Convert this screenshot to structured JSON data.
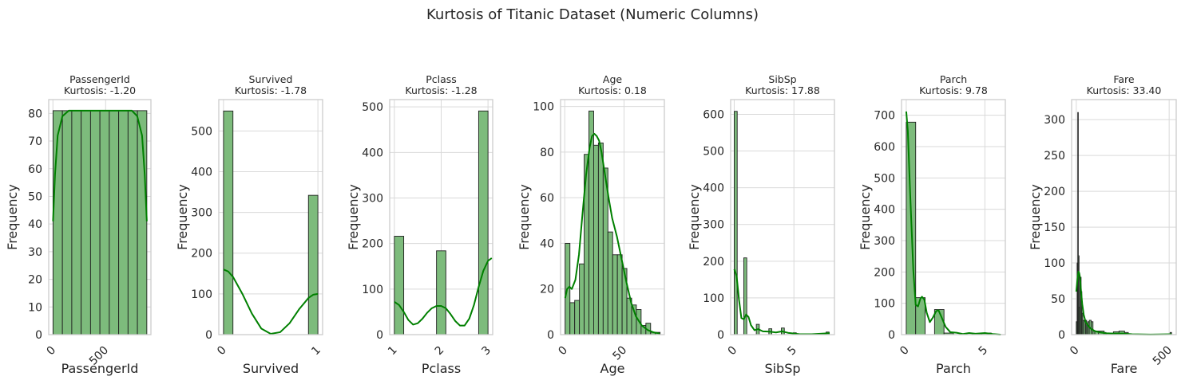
{
  "figure": {
    "title": "Kurtosis of Titanic Dataset (Numeric Columns)"
  },
  "colors": {
    "bar_fill": "#7dbb7c",
    "bar_stroke": "#1f1f1f",
    "kde_line": "#008000",
    "grid": "#d9d9d9",
    "spine": "#cccccc",
    "text": "#262626"
  },
  "chart_data": [
    {
      "type": "bar",
      "title": "PassengerId",
      "subtitle": "Kurtosis: -1.20",
      "xlabel": "PassengerId",
      "ylabel": "Frequency",
      "xlim": [
        -40,
        930
      ],
      "ylim": [
        0,
        85
      ],
      "xticks": [
        0,
        500
      ],
      "xtick_labels": [
        "0",
        "500"
      ],
      "yticks": [
        0,
        10,
        20,
        30,
        40,
        50,
        60,
        70,
        80
      ],
      "ytick_labels": [
        "0",
        "10",
        "20",
        "30",
        "40",
        "50",
        "60",
        "70",
        "80"
      ],
      "bars": [
        [
          1,
          90,
          81
        ],
        [
          90,
          179,
          81
        ],
        [
          179,
          268,
          81
        ],
        [
          268,
          357,
          81
        ],
        [
          357,
          446,
          81
        ],
        [
          446,
          535,
          81
        ],
        [
          535,
          624,
          81
        ],
        [
          624,
          713,
          81
        ],
        [
          713,
          802,
          81
        ],
        [
          802,
          891,
          81
        ]
      ],
      "kde": [
        [
          1,
          41
        ],
        [
          20,
          58
        ],
        [
          45,
          72
        ],
        [
          90,
          79
        ],
        [
          150,
          81
        ],
        [
          300,
          81
        ],
        [
          450,
          81
        ],
        [
          600,
          81
        ],
        [
          750,
          81
        ],
        [
          800,
          79
        ],
        [
          846,
          72
        ],
        [
          871,
          58
        ],
        [
          891,
          41
        ]
      ]
    },
    {
      "type": "bar",
      "title": "Survived",
      "subtitle": "Kurtosis: -1.78",
      "xlabel": "Survived",
      "ylabel": "Frequency",
      "xlim": [
        -0.05,
        1.05
      ],
      "ylim": [
        0,
        577
      ],
      "xticks": [
        0,
        1
      ],
      "xtick_labels": [
        "0",
        "1"
      ],
      "yticks": [
        0,
        100,
        200,
        300,
        400,
        500
      ],
      "ytick_labels": [
        "0",
        "100",
        "200",
        "300",
        "400",
        "500"
      ],
      "bars": [
        [
          0,
          0.1,
          549
        ],
        [
          0.9,
          1.0,
          342
        ]
      ],
      "kde": [
        [
          0,
          160
        ],
        [
          0.05,
          155
        ],
        [
          0.1,
          142
        ],
        [
          0.2,
          100
        ],
        [
          0.3,
          52
        ],
        [
          0.4,
          15
        ],
        [
          0.5,
          2
        ],
        [
          0.6,
          6
        ],
        [
          0.7,
          28
        ],
        [
          0.8,
          62
        ],
        [
          0.9,
          90
        ],
        [
          0.95,
          98
        ],
        [
          1.0,
          100
        ]
      ]
    },
    {
      "type": "bar",
      "title": "Pclass",
      "subtitle": "Kurtosis: -1.28",
      "xlabel": "Pclass",
      "ylabel": "Frequency",
      "xlim": [
        0.9,
        3.1
      ],
      "ylim": [
        0,
        516
      ],
      "xticks": [
        1,
        2,
        3
      ],
      "xtick_labels": [
        "1",
        "2",
        "3"
      ],
      "yticks": [
        0,
        100,
        200,
        300,
        400,
        500
      ],
      "ytick_labels": [
        "0",
        "100",
        "200",
        "300",
        "400",
        "500"
      ],
      "bars": [
        [
          1,
          1.2,
          216
        ],
        [
          1.9,
          2.1,
          184
        ],
        [
          2.8,
          3.0,
          491
        ]
      ],
      "kde": [
        [
          1,
          72
        ],
        [
          1.1,
          65
        ],
        [
          1.2,
          50
        ],
        [
          1.3,
          32
        ],
        [
          1.4,
          22
        ],
        [
          1.5,
          25
        ],
        [
          1.6,
          35
        ],
        [
          1.7,
          48
        ],
        [
          1.8,
          58
        ],
        [
          1.9,
          63
        ],
        [
          2.0,
          63
        ],
        [
          2.1,
          58
        ],
        [
          2.2,
          45
        ],
        [
          2.3,
          30
        ],
        [
          2.4,
          20
        ],
        [
          2.5,
          20
        ],
        [
          2.6,
          35
        ],
        [
          2.7,
          65
        ],
        [
          2.8,
          105
        ],
        [
          2.9,
          140
        ],
        [
          3.0,
          162
        ],
        [
          3.08,
          168
        ]
      ]
    },
    {
      "type": "bar",
      "title": "Age",
      "subtitle": "Kurtosis: 0.18",
      "xlabel": "Age",
      "ylabel": "Frequency",
      "xlim": [
        -3.5,
        84
      ],
      "ylim": [
        0,
        103
      ],
      "xticks": [
        0,
        50
      ],
      "xtick_labels": [
        "0",
        "50"
      ],
      "yticks": [
        0,
        20,
        40,
        60,
        80,
        100
      ],
      "ytick_labels": [
        "0",
        "20",
        "40",
        "60",
        "80",
        "100"
      ],
      "bars": [
        [
          0.4,
          4.4,
          40
        ],
        [
          4.4,
          8.4,
          14
        ],
        [
          8.4,
          12.4,
          15
        ],
        [
          12.4,
          16.4,
          31
        ],
        [
          16.4,
          20.4,
          79
        ],
        [
          20.4,
          24.4,
          98
        ],
        [
          24.4,
          28.4,
          83
        ],
        [
          28.4,
          32.4,
          84
        ],
        [
          32.4,
          36.4,
          73
        ],
        [
          36.4,
          40.4,
          45
        ],
        [
          40.4,
          44.4,
          35
        ],
        [
          44.4,
          48.4,
          35
        ],
        [
          48.4,
          52.4,
          29
        ],
        [
          52.4,
          56.4,
          16
        ],
        [
          56.4,
          60.4,
          13
        ],
        [
          60.4,
          64.4,
          11
        ],
        [
          64.4,
          68.4,
          4
        ],
        [
          68.4,
          72.4,
          5
        ],
        [
          72.4,
          76.4,
          1
        ],
        [
          76.4,
          80.4,
          1
        ]
      ],
      "kde": [
        [
          0.4,
          16
        ],
        [
          2,
          20
        ],
        [
          4,
          21
        ],
        [
          6,
          20
        ],
        [
          9,
          24
        ],
        [
          12,
          35
        ],
        [
          15,
          53
        ],
        [
          18,
          70
        ],
        [
          21,
          82
        ],
        [
          23,
          87
        ],
        [
          25,
          88
        ],
        [
          27,
          87
        ],
        [
          29,
          85
        ],
        [
          31,
          80
        ],
        [
          34,
          70
        ],
        [
          37,
          60
        ],
        [
          40,
          51
        ],
        [
          44,
          43
        ],
        [
          48,
          33
        ],
        [
          52,
          23
        ],
        [
          56,
          14
        ],
        [
          60,
          8
        ],
        [
          65,
          4
        ],
        [
          70,
          2
        ],
        [
          75,
          1
        ],
        [
          80,
          0.5
        ]
      ]
    },
    {
      "type": "bar",
      "title": "SibSp",
      "subtitle": "Kurtosis: 17.88",
      "xlabel": "SibSp",
      "ylabel": "Frequency",
      "xlim": [
        -0.3,
        8.4
      ],
      "ylim": [
        0,
        640
      ],
      "xticks": [
        0,
        5
      ],
      "xtick_labels": [
        "0",
        "5"
      ],
      "yticks": [
        0,
        100,
        200,
        300,
        400,
        500,
        600
      ],
      "ytick_labels": [
        "0",
        "100",
        "200",
        "300",
        "400",
        "500",
        "600"
      ],
      "bars": [
        [
          0,
          0.25,
          608
        ],
        [
          0.8,
          1.05,
          209
        ],
        [
          1.85,
          2.1,
          28
        ],
        [
          2.9,
          3.15,
          16
        ],
        [
          3.95,
          4.2,
          18
        ],
        [
          4.95,
          5.2,
          5
        ],
        [
          7.7,
          7.95,
          7
        ]
      ],
      "kde": [
        [
          0,
          178
        ],
        [
          0.2,
          160
        ],
        [
          0.4,
          95
        ],
        [
          0.6,
          45
        ],
        [
          0.8,
          42
        ],
        [
          1.0,
          55
        ],
        [
          1.2,
          48
        ],
        [
          1.4,
          26
        ],
        [
          1.7,
          12
        ],
        [
          2.0,
          15
        ],
        [
          2.4,
          9
        ],
        [
          3.0,
          8
        ],
        [
          3.5,
          6
        ],
        [
          4.0,
          9
        ],
        [
          4.5,
          5
        ],
        [
          5.0,
          3
        ],
        [
          5.5,
          1
        ],
        [
          6.5,
          1
        ],
        [
          7.5,
          3
        ],
        [
          8.0,
          4
        ]
      ]
    },
    {
      "type": "bar",
      "title": "Parch",
      "subtitle": "Kurtosis: 9.78",
      "xlabel": "Parch",
      "ylabel": "Frequency",
      "xlim": [
        -0.3,
        6.3
      ],
      "ylim": [
        0,
        750
      ],
      "xticks": [
        0,
        5
      ],
      "xtick_labels": [
        "0",
        "5"
      ],
      "yticks": [
        0,
        100,
        200,
        300,
        400,
        500,
        600,
        700
      ],
      "ytick_labels": [
        "0",
        "100",
        "200",
        "300",
        "400",
        "500",
        "600",
        "700"
      ],
      "bars": [
        [
          0,
          0.6,
          678
        ],
        [
          0.6,
          1.2,
          118
        ],
        [
          1.8,
          2.4,
          80
        ],
        [
          2.4,
          3.0,
          5
        ],
        [
          4.2,
          4.8,
          4
        ],
        [
          4.8,
          5.4,
          5
        ],
        [
          5.4,
          6.0,
          1
        ]
      ],
      "kde": [
        [
          0,
          712
        ],
        [
          0.1,
          650
        ],
        [
          0.25,
          450
        ],
        [
          0.45,
          205
        ],
        [
          0.6,
          95
        ],
        [
          0.75,
          90
        ],
        [
          0.9,
          115
        ],
        [
          1.0,
          121
        ],
        [
          1.15,
          112
        ],
        [
          1.3,
          70
        ],
        [
          1.5,
          40
        ],
        [
          1.7,
          55
        ],
        [
          1.9,
          75
        ],
        [
          2.05,
          78
        ],
        [
          2.25,
          55
        ],
        [
          2.5,
          25
        ],
        [
          2.8,
          8
        ],
        [
          3.2,
          6
        ],
        [
          3.6,
          2
        ],
        [
          4.0,
          5
        ],
        [
          4.4,
          3
        ],
        [
          5.0,
          5
        ],
        [
          5.5,
          2
        ],
        [
          6.0,
          0
        ]
      ]
    },
    {
      "type": "bar",
      "title": "Fare",
      "subtitle": "Kurtosis: 33.40",
      "xlabel": "Fare",
      "ylabel": "Frequency",
      "xlim": [
        -25,
        538
      ],
      "ylim": [
        0,
        328
      ],
      "xticks": [
        0,
        500
      ],
      "xtick_labels": [
        "0",
        "500"
      ],
      "yticks": [
        0,
        50,
        100,
        150,
        200,
        250,
        300
      ],
      "ytick_labels": [
        "0",
        "50",
        "100",
        "150",
        "200",
        "250",
        "300"
      ],
      "bars": [
        [
          0,
          5,
          18
        ],
        [
          5,
          8,
          100
        ],
        [
          8,
          11,
          310
        ],
        [
          11,
          15,
          110
        ],
        [
          15,
          20,
          38
        ],
        [
          20,
          26,
          80
        ],
        [
          26,
          30,
          60
        ],
        [
          30,
          35,
          30
        ],
        [
          35,
          42,
          20
        ],
        [
          42,
          50,
          20
        ],
        [
          50,
          56,
          20
        ],
        [
          56,
          62,
          15
        ],
        [
          62,
          70,
          18
        ],
        [
          70,
          80,
          20
        ],
        [
          80,
          90,
          18
        ],
        [
          90,
          100,
          5
        ],
        [
          100,
          120,
          5
        ],
        [
          120,
          150,
          5
        ],
        [
          150,
          160,
          3
        ],
        [
          160,
          200,
          2
        ],
        [
          200,
          230,
          4
        ],
        [
          230,
          260,
          5
        ],
        [
          260,
          280,
          3
        ],
        [
          505,
          513,
          3
        ]
      ],
      "kde": [
        [
          0,
          60
        ],
        [
          4,
          70
        ],
        [
          8,
          82
        ],
        [
          12,
          88
        ],
        [
          16,
          86
        ],
        [
          20,
          80
        ],
        [
          26,
          60
        ],
        [
          32,
          43
        ],
        [
          40,
          28
        ],
        [
          50,
          18
        ],
        [
          65,
          12
        ],
        [
          80,
          8
        ],
        [
          100,
          5
        ],
        [
          130,
          3
        ],
        [
          160,
          2
        ],
        [
          200,
          1.5
        ],
        [
          250,
          1.5
        ],
        [
          300,
          0.5
        ],
        [
          400,
          0.2
        ],
        [
          512,
          0.5
        ]
      ]
    }
  ]
}
